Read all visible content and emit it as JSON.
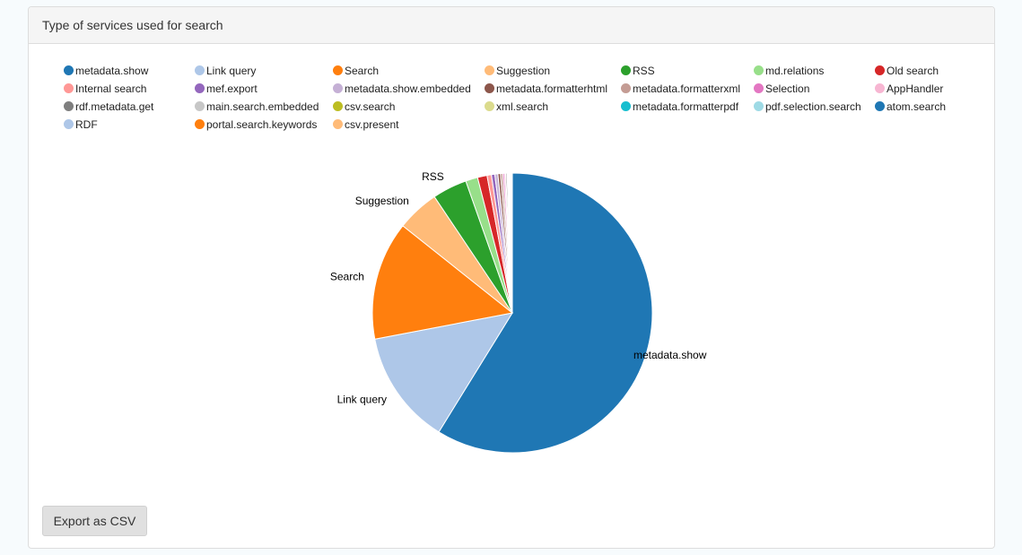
{
  "panel": {
    "title": "Type of services used for search"
  },
  "export_button": {
    "label": "Export as CSV"
  },
  "chart_data": {
    "type": "pie",
    "title": "Type of services used for search",
    "legend_position": "top",
    "slices": [
      {
        "label": "metadata.show",
        "value": 58.8,
        "color": "#1f77b4"
      },
      {
        "label": "Link query",
        "value": 13.2,
        "color": "#aec7e8"
      },
      {
        "label": "Search",
        "value": 13.7,
        "color": "#ff7f0e"
      },
      {
        "label": "Suggestion",
        "value": 4.9,
        "color": "#ffbb78"
      },
      {
        "label": "RSS",
        "value": 4.0,
        "color": "#2ca02c"
      },
      {
        "label": "md.relations",
        "value": 1.4,
        "color": "#98df8a"
      },
      {
        "label": "Old search",
        "value": 1.1,
        "color": "#d62728"
      },
      {
        "label": "Internal search",
        "value": 0.5,
        "color": "#ff9896"
      },
      {
        "label": "mef.export",
        "value": 0.4,
        "color": "#9467bd"
      },
      {
        "label": "metadata.show.embedded",
        "value": 0.35,
        "color": "#c5b0d5"
      },
      {
        "label": "metadata.formatterhtml",
        "value": 0.3,
        "color": "#8c564b"
      },
      {
        "label": "metadata.formatterxml",
        "value": 0.25,
        "color": "#c49c94"
      },
      {
        "label": "Selection",
        "value": 0.2,
        "color": "#e377c2"
      },
      {
        "label": "AppHandler",
        "value": 0.15,
        "color": "#f7b6d2"
      },
      {
        "label": "rdf.metadata.get",
        "value": 0.15,
        "color": "#7f7f7f"
      },
      {
        "label": "main.search.embedded",
        "value": 0.1,
        "color": "#c7c7c7"
      },
      {
        "label": "csv.search",
        "value": 0.1,
        "color": "#bcbd22"
      },
      {
        "label": "xml.search",
        "value": 0.1,
        "color": "#dbdb8d"
      },
      {
        "label": "metadata.formatterpdf",
        "value": 0.05,
        "color": "#17becf"
      },
      {
        "label": "pdf.selection.search",
        "value": 0.05,
        "color": "#9edae5"
      },
      {
        "label": "atom.search",
        "value": 0.05,
        "color": "#1f77b4"
      },
      {
        "label": "RDF",
        "value": 0.05,
        "color": "#aec7e8"
      },
      {
        "label": "portal.search.keywords",
        "value": 0.05,
        "color": "#ff7f0e"
      },
      {
        "label": "csv.present",
        "value": 0.05,
        "color": "#ffbb78"
      }
    ],
    "labeled_slices": [
      "metadata.show",
      "Link query",
      "Search",
      "Suggestion",
      "RSS"
    ]
  }
}
